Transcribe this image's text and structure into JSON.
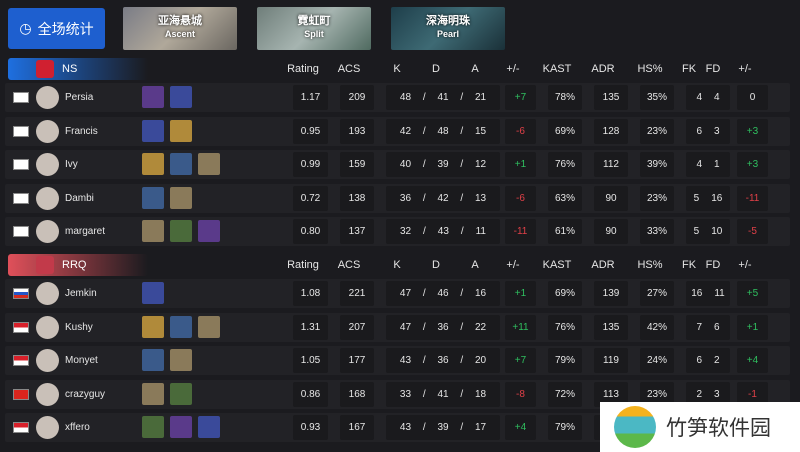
{
  "overall_label": "全场统计",
  "maps": [
    {
      "cn": "亚海悬城",
      "en": "Ascent"
    },
    {
      "cn": "霓虹町",
      "en": "Split"
    },
    {
      "cn": "深海明珠",
      "en": "Pearl"
    }
  ],
  "headers": [
    "Rating",
    "ACS",
    "K",
    "D",
    "A",
    "+/-",
    "KAST",
    "ADR",
    "HS%",
    "FK",
    "FD",
    "+/-"
  ],
  "teams": [
    {
      "name": "NS",
      "color": "#1e6fe0",
      "players": [
        {
          "flag": "KR",
          "name": "Persia",
          "agents": 2,
          "rating": "1.17",
          "acs": "209",
          "k": "48",
          "d": "41",
          "a": "21",
          "pm": "+7",
          "kast": "78%",
          "adr": "135",
          "hs": "35%",
          "fk": "4",
          "fd": "4",
          "fpm": "0"
        },
        {
          "flag": "KR",
          "name": "Francis",
          "agents": 2,
          "rating": "0.95",
          "acs": "193",
          "k": "42",
          "d": "48",
          "a": "15",
          "pm": "-6",
          "kast": "69%",
          "adr": "128",
          "hs": "23%",
          "fk": "6",
          "fd": "3",
          "fpm": "+3"
        },
        {
          "flag": "KR",
          "name": "Ivy",
          "agents": 3,
          "rating": "0.99",
          "acs": "159",
          "k": "40",
          "d": "39",
          "a": "12",
          "pm": "+1",
          "kast": "76%",
          "adr": "112",
          "hs": "39%",
          "fk": "4",
          "fd": "1",
          "fpm": "+3"
        },
        {
          "flag": "KR",
          "name": "Dambi",
          "agents": 2,
          "rating": "0.72",
          "acs": "138",
          "k": "36",
          "d": "42",
          "a": "13",
          "pm": "-6",
          "kast": "63%",
          "adr": "90",
          "hs": "23%",
          "fk": "5",
          "fd": "16",
          "fpm": "-11"
        },
        {
          "flag": "KR",
          "name": "margaret",
          "agents": 3,
          "rating": "0.80",
          "acs": "137",
          "k": "32",
          "d": "43",
          "a": "11",
          "pm": "-11",
          "kast": "61%",
          "adr": "90",
          "hs": "33%",
          "fk": "5",
          "fd": "10",
          "fpm": "-5"
        }
      ]
    },
    {
      "name": "RRQ",
      "color": "#e0505a",
      "players": [
        {
          "flag": "RU",
          "name": "Jemkin",
          "agents": 1,
          "rating": "1.08",
          "acs": "221",
          "k": "47",
          "d": "46",
          "a": "16",
          "pm": "+1",
          "kast": "69%",
          "adr": "139",
          "hs": "27%",
          "fk": "16",
          "fd": "11",
          "fpm": "+5"
        },
        {
          "flag": "ID",
          "name": "Kushy",
          "agents": 3,
          "rating": "1.31",
          "acs": "207",
          "k": "47",
          "d": "36",
          "a": "22",
          "pm": "+11",
          "kast": "76%",
          "adr": "135",
          "hs": "42%",
          "fk": "7",
          "fd": "6",
          "fpm": "+1"
        },
        {
          "flag": "ID",
          "name": "Monyet",
          "agents": 2,
          "rating": "1.05",
          "acs": "177",
          "k": "43",
          "d": "36",
          "a": "20",
          "pm": "+7",
          "kast": "79%",
          "adr": "119",
          "hs": "24%",
          "fk": "6",
          "fd": "2",
          "fpm": "+4"
        },
        {
          "flag": "VN",
          "name": "crazyguy",
          "agents": 2,
          "rating": "0.86",
          "acs": "168",
          "k": "33",
          "d": "41",
          "a": "18",
          "pm": "-8",
          "kast": "72%",
          "adr": "113",
          "hs": "23%",
          "fk": "2",
          "fd": "3",
          "fpm": "-1"
        },
        {
          "flag": "ID",
          "name": "xffero",
          "agents": 3,
          "rating": "0.93",
          "acs": "167",
          "k": "43",
          "d": "39",
          "a": "17",
          "pm": "+4",
          "kast": "79%",
          "adr": "",
          "hs": "",
          "fk": "",
          "fd": "",
          "fpm": ""
        }
      ]
    }
  ],
  "watermark": "竹笋软件园"
}
